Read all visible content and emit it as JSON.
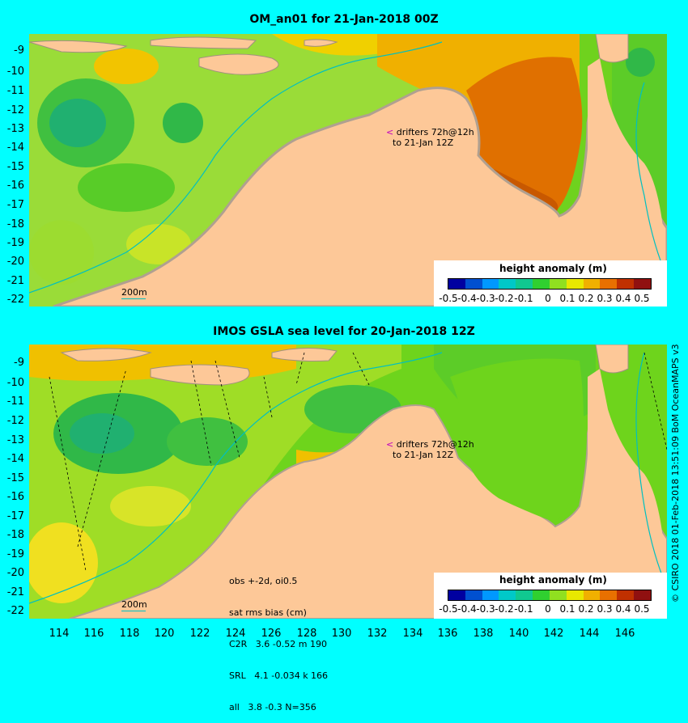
{
  "top_panel": {
    "title": "OM_an01 for 21-Jan-2018 00Z",
    "y_labels": [
      "-9",
      "-10",
      "-11",
      "-12",
      "-13",
      "-14",
      "-15",
      "-16",
      "-17",
      "-18",
      "-19",
      "-20",
      "-21",
      "-22"
    ],
    "drifters_line1": "drifters 72h@12h",
    "drifters_line2": "to 21-Jan 12Z",
    "scale_label": "200m",
    "colorbar_title": "height anomaly (m)"
  },
  "bottom_panel": {
    "title": "IMOS GSLA sea level  for 20-Jan-2018 12Z",
    "y_labels": [
      "-9",
      "-10",
      "-11",
      "-12",
      "-13",
      "-14",
      "-15",
      "-16",
      "-17",
      "-18",
      "-19",
      "-20",
      "-21",
      "-22"
    ],
    "drifters_line1": "drifters 72h@12h",
    "drifters_line2": "to 21-Jan 12Z",
    "scale_label": "200m",
    "colorbar_title": "height anomaly (m)",
    "stats": [
      "obs +-2d, oi0.5",
      "sat rms bias (cm)",
      "C2R   3.6 -0.52 m 190",
      "SRL   4.1 -0.034 k 166",
      "all   3.8 -0.3 N=356"
    ]
  },
  "x_labels": [
    "114",
    "116",
    "118",
    "120",
    "122",
    "124",
    "126",
    "128",
    "130",
    "132",
    "134",
    "136",
    "138",
    "140",
    "142",
    "144",
    "146"
  ],
  "colorbar_ticks": [
    "-0.5",
    "-0.4",
    "-0.3",
    "-0.2",
    "-0.1",
    "0",
    "0.1",
    "0.2",
    "0.3",
    "0.4",
    "0.5"
  ],
  "colorbar_colors": [
    "#0000a0",
    "#0050d0",
    "#0098ff",
    "#00c8c8",
    "#10c890",
    "#30d030",
    "#90e020",
    "#e8e800",
    "#f0b000",
    "#e87000",
    "#c03000",
    "#901010"
  ],
  "credit": "© CSIRO 2018  01-Feb-2018 13:51:09 BoM OceanMAPS v3",
  "colors": {
    "land": "#fdc898",
    "water_green": "#70d820",
    "background": "#00ffff"
  }
}
